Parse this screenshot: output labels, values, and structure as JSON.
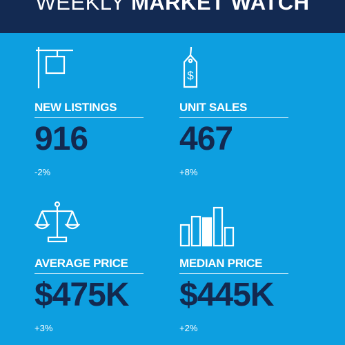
{
  "header": {
    "title_light": "WEEKLY",
    "title_bold": "MARKET WATCH"
  },
  "stats": [
    {
      "icon": "for-sale-sign-icon",
      "label": "NEW LISTINGS",
      "value": "916",
      "change": "-2%"
    },
    {
      "icon": "price-tag-icon",
      "label": "UNIT SALES",
      "value": "467",
      "change": "+8%"
    },
    {
      "icon": "scales-icon",
      "label": "AVERAGE PRICE",
      "value": "$475K",
      "change": "+3%"
    },
    {
      "icon": "bar-chart-icon",
      "label": "MEDIAN PRICE",
      "value": "$445K",
      "change": "+2%"
    }
  ],
  "colors": {
    "background": "#0d9fe0",
    "header": "#132a52",
    "value_text": "#13294f",
    "label_text": "#ffffff"
  }
}
